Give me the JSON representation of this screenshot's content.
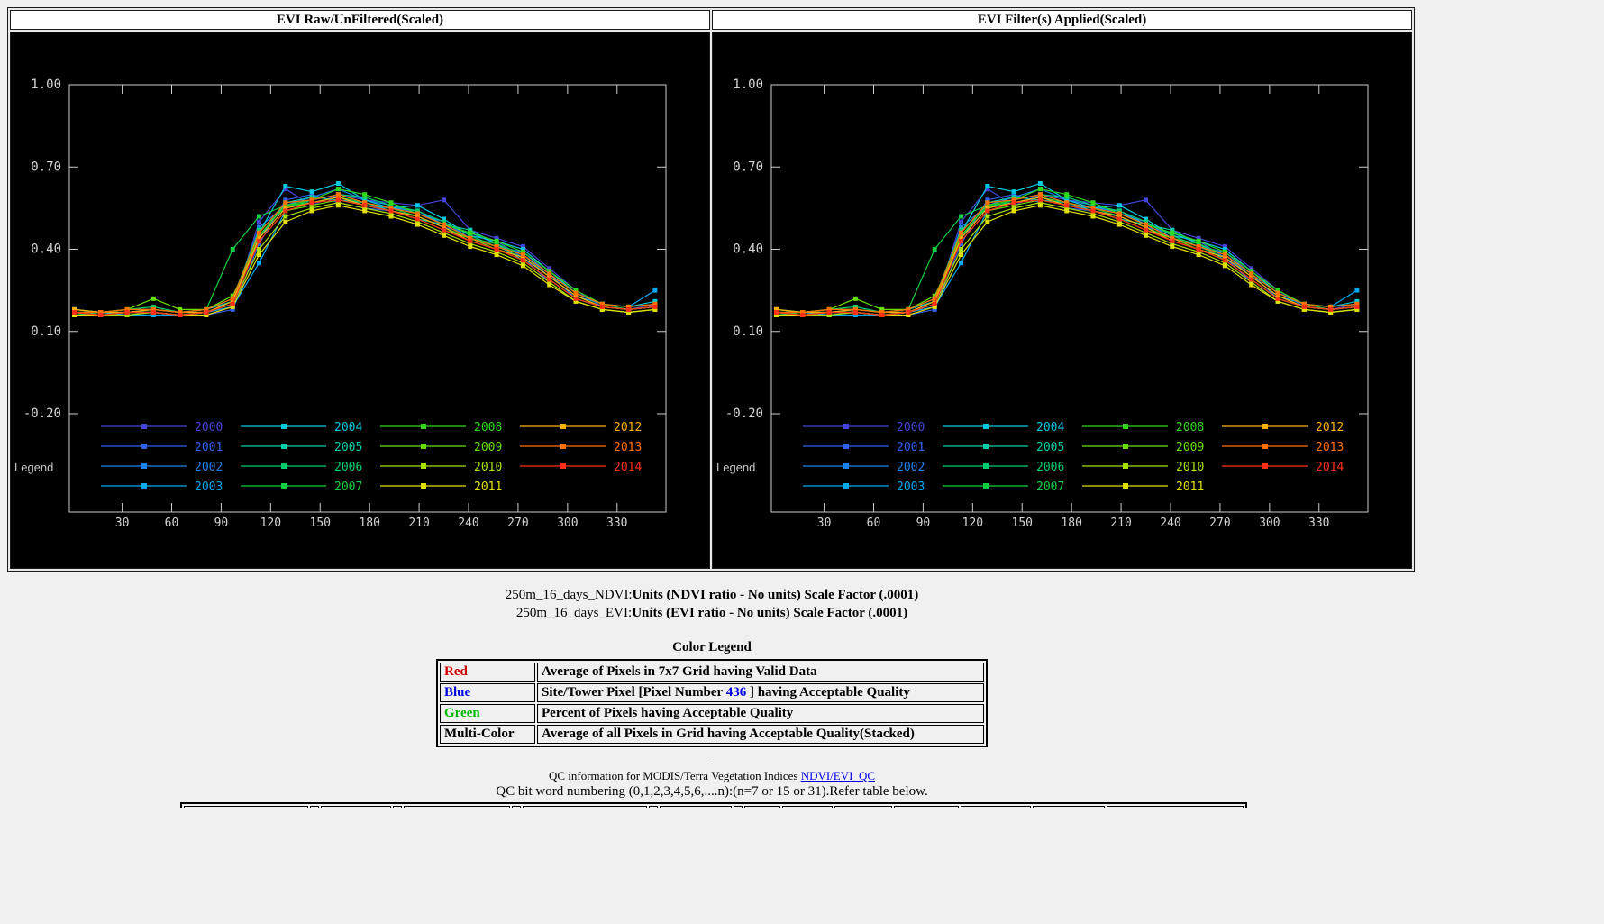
{
  "page": {
    "bg": "#f0f0f0",
    "axis_color": "#cccccc",
    "tick_label_color": "#d4d4d4"
  },
  "chart_data": {
    "type": "line",
    "panels": [
      "EVI Raw/UnFiltered(Scaled)",
      "EVI Filter(s) Applied(Scaled)"
    ],
    "legend_title": "Legend",
    "xlabel": "",
    "ylabel": "",
    "ylim": [
      -0.2,
      1.0
    ],
    "yticks": [
      1.0,
      0.7,
      0.4,
      0.1,
      -0.2
    ],
    "xticks": [
      30,
      60,
      90,
      120,
      150,
      180,
      210,
      240,
      270,
      300,
      330
    ],
    "x": [
      1,
      17,
      33,
      49,
      65,
      81,
      97,
      113,
      129,
      145,
      161,
      177,
      193,
      209,
      225,
      241,
      257,
      273,
      289,
      305,
      321,
      337,
      353
    ],
    "series": [
      {
        "name": "2000",
        "color": "#4444d8",
        "values": [
          0.18,
          0.17,
          0.17,
          0.17,
          0.16,
          0.17,
          0.19,
          0.5,
          0.62,
          0.56,
          0.6,
          0.58,
          0.57,
          0.56,
          0.58,
          0.47,
          0.44,
          0.41,
          0.33,
          0.25,
          0.19,
          0.18,
          0.2
        ]
      },
      {
        "name": "2001",
        "color": "#3060ee",
        "values": [
          0.17,
          0.16,
          0.16,
          0.17,
          0.16,
          0.16,
          0.18,
          0.42,
          0.58,
          0.6,
          0.57,
          0.55,
          0.54,
          0.52,
          0.48,
          0.46,
          0.43,
          0.37,
          0.28,
          0.21,
          0.18,
          0.17,
          0.18
        ]
      },
      {
        "name": "2002",
        "color": "#1c82f0",
        "values": [
          0.16,
          0.16,
          0.17,
          0.18,
          0.17,
          0.17,
          0.2,
          0.48,
          0.56,
          0.59,
          0.62,
          0.58,
          0.56,
          0.53,
          0.5,
          0.44,
          0.41,
          0.39,
          0.31,
          0.22,
          0.19,
          0.18,
          0.19
        ]
      },
      {
        "name": "2003",
        "color": "#00a8f0",
        "values": [
          0.17,
          0.17,
          0.16,
          0.16,
          0.16,
          0.17,
          0.19,
          0.35,
          0.54,
          0.57,
          0.59,
          0.56,
          0.55,
          0.54,
          0.49,
          0.46,
          0.42,
          0.38,
          0.3,
          0.23,
          0.2,
          0.19,
          0.25
        ]
      },
      {
        "name": "2004",
        "color": "#00c8e0",
        "values": [
          0.18,
          0.17,
          0.17,
          0.18,
          0.17,
          0.18,
          0.21,
          0.46,
          0.63,
          0.61,
          0.64,
          0.58,
          0.55,
          0.56,
          0.51,
          0.45,
          0.43,
          0.4,
          0.32,
          0.24,
          0.2,
          0.19,
          0.21
        ]
      },
      {
        "name": "2005",
        "color": "#00d0a8",
        "values": [
          0.17,
          0.16,
          0.17,
          0.17,
          0.16,
          0.17,
          0.2,
          0.44,
          0.57,
          0.59,
          0.58,
          0.57,
          0.54,
          0.51,
          0.49,
          0.47,
          0.42,
          0.36,
          0.29,
          0.22,
          0.19,
          0.18,
          0.19
        ]
      },
      {
        "name": "2006",
        "color": "#00cc70",
        "values": [
          0.16,
          0.17,
          0.18,
          0.19,
          0.17,
          0.18,
          0.22,
          0.47,
          0.55,
          0.58,
          0.6,
          0.59,
          0.56,
          0.54,
          0.5,
          0.45,
          0.41,
          0.37,
          0.3,
          0.23,
          0.19,
          0.18,
          0.19
        ]
      },
      {
        "name": "2007",
        "color": "#10d040",
        "values": [
          0.17,
          0.17,
          0.18,
          0.18,
          0.17,
          0.18,
          0.4,
          0.52,
          0.56,
          0.57,
          0.59,
          0.57,
          0.55,
          0.52,
          0.48,
          0.44,
          0.42,
          0.38,
          0.31,
          0.24,
          0.2,
          0.18,
          0.19
        ]
      },
      {
        "name": "2008",
        "color": "#30d818",
        "values": [
          0.17,
          0.16,
          0.17,
          0.17,
          0.16,
          0.17,
          0.21,
          0.45,
          0.56,
          0.58,
          0.62,
          0.6,
          0.57,
          0.53,
          0.49,
          0.46,
          0.43,
          0.39,
          0.32,
          0.25,
          0.2,
          0.19,
          0.2
        ]
      },
      {
        "name": "2009",
        "color": "#68e000",
        "values": [
          0.18,
          0.17,
          0.18,
          0.22,
          0.18,
          0.18,
          0.23,
          0.43,
          0.54,
          0.56,
          0.58,
          0.56,
          0.54,
          0.51,
          0.47,
          0.44,
          0.4,
          0.36,
          0.29,
          0.22,
          0.19,
          0.18,
          0.19
        ]
      },
      {
        "name": "2010",
        "color": "#a8e000",
        "values": [
          0.17,
          0.16,
          0.16,
          0.17,
          0.16,
          0.17,
          0.2,
          0.4,
          0.52,
          0.55,
          0.57,
          0.55,
          0.53,
          0.5,
          0.46,
          0.42,
          0.39,
          0.35,
          0.28,
          0.21,
          0.18,
          0.17,
          0.18
        ]
      },
      {
        "name": "2011",
        "color": "#e0e000",
        "values": [
          0.16,
          0.16,
          0.17,
          0.17,
          0.16,
          0.16,
          0.19,
          0.38,
          0.5,
          0.54,
          0.56,
          0.54,
          0.52,
          0.49,
          0.45,
          0.41,
          0.38,
          0.34,
          0.27,
          0.21,
          0.18,
          0.17,
          0.18
        ]
      },
      {
        "name": "2012",
        "color": "#ffb000",
        "values": [
          0.18,
          0.17,
          0.17,
          0.18,
          0.17,
          0.17,
          0.21,
          0.44,
          0.55,
          0.57,
          0.59,
          0.56,
          0.54,
          0.52,
          0.48,
          0.43,
          0.4,
          0.37,
          0.3,
          0.23,
          0.19,
          0.18,
          0.19
        ]
      },
      {
        "name": "2013",
        "color": "#ff7000",
        "values": [
          0.17,
          0.17,
          0.18,
          0.18,
          0.17,
          0.18,
          0.22,
          0.46,
          0.57,
          0.58,
          0.6,
          0.57,
          0.55,
          0.53,
          0.49,
          0.44,
          0.41,
          0.38,
          0.31,
          0.24,
          0.2,
          0.19,
          0.2
        ]
      },
      {
        "name": "2014",
        "color": "#ff3018",
        "values": [
          0.17,
          0.16,
          0.17,
          0.17,
          0.16,
          0.17,
          0.2,
          0.43,
          0.54,
          0.57,
          0.58,
          0.56,
          0.54,
          0.51,
          0.47,
          0.43,
          0.4,
          0.36,
          0.29,
          0.22,
          0.19,
          0.18,
          0.19
        ]
      }
    ]
  },
  "notes": {
    "line1_prefix": "250m_16_days_NDVI:",
    "line1_bold": "Units (NDVI ratio - No units) Scale Factor (.0001)",
    "line2_prefix": "250m_16_days_EVI:",
    "line2_bold": "Units (EVI ratio - No units) Scale Factor (.0001)"
  },
  "color_legend": {
    "title": "Color Legend",
    "rows": [
      {
        "label": "Red",
        "color": "#cc0000",
        "desc": "Average of Pixels in 7x7 Grid having Valid Data"
      },
      {
        "label": "Blue",
        "color": "#0000dd",
        "desc_before": "Site/Tower Pixel [Pixel Number ",
        "pixel_number": "436",
        "pixel_number_color": "#0000dd",
        "desc_after": " ] having Acceptable Quality"
      },
      {
        "label": "Green",
        "color": "#00bb00",
        "desc": "Percent of Pixels having Acceptable Quality"
      },
      {
        "label": "Multi-Color",
        "color": "#000000",
        "desc": "Average of all Pixels in Grid having Acceptable Quality(Stacked)"
      }
    ]
  },
  "qc": {
    "dash": "-",
    "info_text": "QC information for MODIS/Terra Vegetation Indices ",
    "info_link": "NDVI/EVI_QC",
    "bit_text": "QC bit word numbering (0,1,2,3,4,5,6,....n):(n=7 or 15 or 31).Refer table below."
  }
}
